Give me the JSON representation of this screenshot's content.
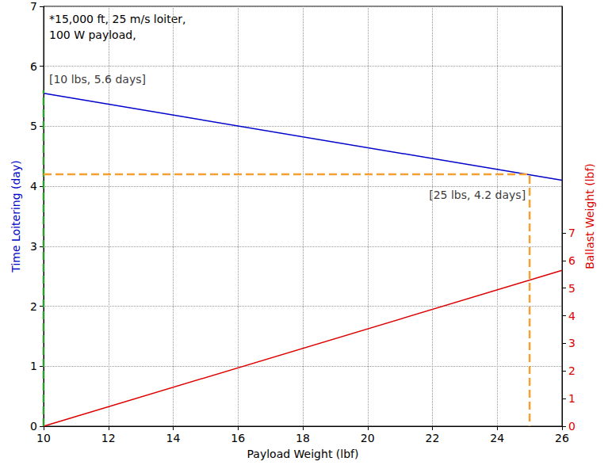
{
  "chart_data": {
    "type": "line",
    "annotation": "*15,000 ft, 25 m/s loiter,\n100 W payload,",
    "xlabel": "Payload Weight (lbf)",
    "ylabel": "Time Loitering (day)",
    "y2label": "Ballast Weight (lbf)",
    "x": [
      10,
      26
    ],
    "xlim": [
      10,
      26
    ],
    "xticks": [
      10,
      12,
      14,
      16,
      18,
      20,
      22,
      24,
      26
    ],
    "ylim": [
      0,
      7
    ],
    "yticks": [
      0,
      1,
      2,
      3,
      4,
      5,
      6,
      7
    ],
    "y2lim": [
      0,
      15.2
    ],
    "y2ticks": [
      0,
      1,
      2,
      3,
      4,
      5,
      6,
      7
    ],
    "grid": true,
    "series": [
      {
        "color": "#0000cc",
        "values": [
          5.55,
          4.1
        ]
      },
      {
        "color": "#dd0000",
        "values": [
          0,
          5.64
        ],
        "axis": "y2"
      }
    ],
    "markers": [
      {
        "x": 10,
        "y": 5.6,
        "label": "[10 lbs, 5.6 days]",
        "color": "#339933",
        "line_style": "dashed"
      },
      {
        "x": 25,
        "y": 4.2,
        "label": "[25 lbs, 4.2 days]",
        "color": "#f5a030",
        "line_style": "dashed"
      }
    ]
  }
}
